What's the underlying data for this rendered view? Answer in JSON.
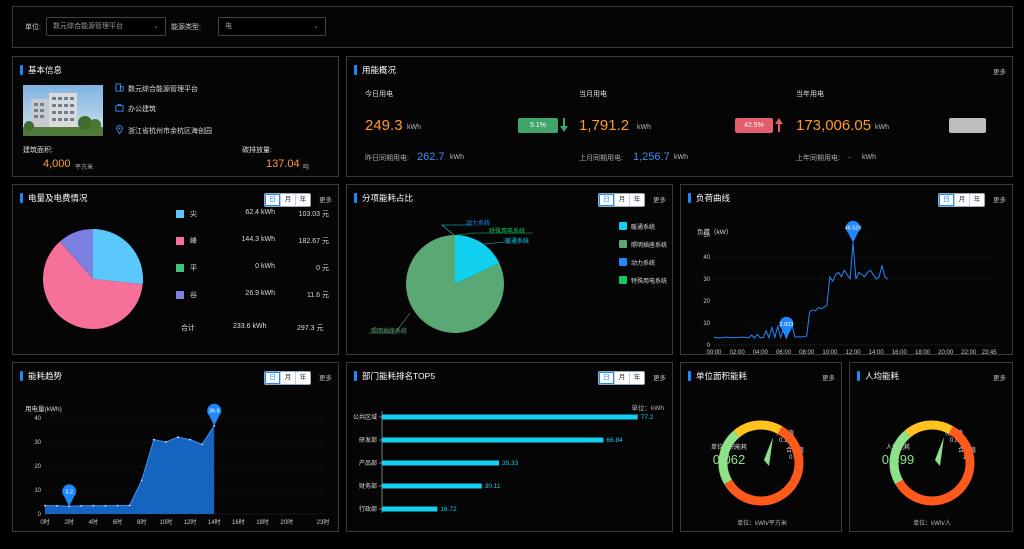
{
  "filter": {
    "unit_label": "单位:",
    "unit_value": "数元综合能源管理平台",
    "energy_type_label": "能源类型:",
    "energy_type_value": "电"
  },
  "basic_info": {
    "title": "基本信息",
    "platform_name": "数元综合能源管理平台",
    "building_type": "办公建筑",
    "address": "浙江省杭州市余杭区海创园",
    "area_label": "建筑面积:",
    "area_value": "4,000",
    "area_unit": "平方米",
    "carbon_label": "碳排放量:",
    "carbon_value": "137.04",
    "carbon_unit": "吨"
  },
  "overview": {
    "title": "用能概况",
    "more": "更多",
    "today_label": "今日用电",
    "today_value": "249.3",
    "today_unit": "kWh",
    "today_badge": "5.1%",
    "yesterday_label": "昨日同期用电:",
    "yesterday_value": "262.7",
    "yesterday_unit": "kWh",
    "month_label": "当月用电",
    "month_value": "1,791.2",
    "month_unit": "kWh",
    "month_badge": "42.5%",
    "last_month_label": "上月同期用电:",
    "last_month_value": "1,256.7",
    "last_month_unit": "kWh",
    "year_label": "当年用电",
    "year_value": "173,006.05",
    "year_unit": "kWh",
    "year_badge": "-",
    "last_year_label": "上年同期用电:",
    "last_year_value": "-",
    "last_year_unit": "kWh",
    "colors": {
      "up_green": "#3fa66b",
      "up_red": "#e35d6a",
      "gray": "#bdbdbd",
      "orange": "#ff9a2e",
      "blue": "#3e8df5"
    }
  },
  "tabs": {
    "day": "日",
    "month": "月",
    "year": "年",
    "more": "更多"
  },
  "electricity_fee": {
    "title": "电量及电费情况",
    "rows": [
      {
        "name": "尖",
        "energy": "62.4 kWh",
        "fee": "103.03 元",
        "color": "#5bc8fb"
      },
      {
        "name": "峰",
        "energy": "144.3 kWh",
        "fee": "182.67 元",
        "color": "#f7709a"
      },
      {
        "name": "平",
        "energy": "0 kWh",
        "fee": "0 元",
        "color": "#45c27a"
      },
      {
        "name": "谷",
        "energy": "26.9 kWh",
        "fee": "11.6 元",
        "color": "#7a7fe0"
      }
    ],
    "total_label": "合计",
    "total_energy": "233.6 kWh",
    "total_fee": "297.3 元"
  },
  "subitem": {
    "title": "分项能耗占比",
    "legend": [
      {
        "name": "暖通系统",
        "color": "#12d0f0"
      },
      {
        "name": "照明插座系统",
        "color": "#5aa873"
      },
      {
        "name": "动力系统",
        "color": "#1e88ff"
      },
      {
        "name": "特殊用电系统",
        "color": "#17c963"
      }
    ],
    "labels": {
      "power": "动力系统",
      "special": "特殊用电系统",
      "hvac": "暖通系统",
      "lighting": "照明插座系统"
    }
  },
  "load_curve": {
    "title": "负荷曲线",
    "y_title": "负荷（kW）",
    "peak_label": "46.529",
    "low_label": "2.833"
  },
  "trend": {
    "title": "能耗趋势",
    "y_title": "用电量(kWh)",
    "peak_label": "36.8",
    "low_label": "3.2"
  },
  "dept": {
    "title": "部门能耗排名TOP5",
    "unit_label": "单位：kWh"
  },
  "unit_area": {
    "title": "单位面积能耗",
    "center_label": "单位面积能耗",
    "center_value": "0.062",
    "advanced_label": "先进值",
    "advanced_value": "0.16",
    "reasonable_label": "合理值",
    "reasonable_value": "0.22",
    "unit": "单位：kWh/平方米",
    "more": "更多"
  },
  "per_capita": {
    "title": "人均能耗",
    "center_label": "人均能耗",
    "center_value": "0.499",
    "advanced_label": "先进值",
    "advanced_value": "0.8",
    "reasonable_label": "合理值",
    "reasonable_value": "1.2",
    "unit": "单位：kWh/人",
    "more": "更多"
  },
  "chart_data": [
    {
      "type": "pie",
      "title": "电量及电费情况",
      "categories": [
        "尖",
        "峰",
        "平",
        "谷"
      ],
      "values": [
        62.4,
        144.3,
        0,
        26.9
      ],
      "colors": [
        "#5bc8fb",
        "#f7709a",
        "#45c27a",
        "#7a7fe0"
      ]
    },
    {
      "type": "pie",
      "title": "分项能耗占比",
      "categories": [
        "暖通系统",
        "照明插座系统",
        "动力系统",
        "特殊用电系统"
      ],
      "values": [
        18,
        82,
        0,
        0
      ],
      "colors": [
        "#12d0f0",
        "#5aa873",
        "#1e88ff",
        "#17c963"
      ]
    },
    {
      "type": "line",
      "title": "负荷曲线",
      "ylabel": "负荷（kW）",
      "ylim": [
        0,
        50
      ],
      "yticks": [
        0,
        10,
        20,
        30,
        40,
        50
      ],
      "xlim": [
        0,
        24
      ],
      "xtick_labels": [
        "00:00",
        "02:00",
        "04:00",
        "06:00",
        "08:00",
        "10:00",
        "12:00",
        "14:00",
        "16:00",
        "18:00",
        "20:00",
        "22:00",
        "23:45"
      ],
      "xtick_values": [
        0,
        2,
        4,
        6,
        8,
        10,
        12,
        14,
        16,
        18,
        20,
        22,
        23.75
      ],
      "x": [
        0,
        0.5,
        1,
        1.5,
        2,
        2.5,
        3,
        3.25,
        3.5,
        3.75,
        4,
        4.25,
        4.5,
        4.75,
        5,
        5.25,
        5.5,
        5.75,
        6,
        6.25,
        6.5,
        6.75,
        7,
        7.25,
        7.5,
        7.75,
        8,
        8.25,
        8.5,
        8.75,
        9,
        9.25,
        9.5,
        9.75,
        10,
        10.25,
        10.5,
        10.75,
        11,
        11.25,
        11.5,
        11.75,
        12,
        12.25,
        12.5,
        12.75,
        13,
        13.25,
        13.5,
        13.75,
        14,
        14.25,
        14.5,
        14.75,
        15
      ],
      "y": [
        3.5,
        3.2,
        3.6,
        3.3,
        3.4,
        3.6,
        3.3,
        4.5,
        3.2,
        4.8,
        3.3,
        3.4,
        6.5,
        3.3,
        8,
        3.4,
        8.5,
        3.5,
        7.5,
        2.833,
        9,
        8.5,
        3.5,
        3.8,
        3.6,
        3.9,
        4,
        15,
        16,
        15.5,
        17,
        16.5,
        17.2,
        18,
        31,
        29,
        32,
        33,
        31,
        34,
        32,
        30,
        46.529,
        30,
        33,
        32,
        31,
        33,
        34,
        32,
        30,
        31,
        36,
        31,
        30
      ],
      "annotations": [
        {
          "x": 12,
          "y": 46.529,
          "label": "46.529"
        },
        {
          "x": 6.25,
          "y": 2.833,
          "label": "2.833"
        }
      ]
    },
    {
      "type": "area",
      "title": "能耗趋势",
      "ylabel": "用电量(kWh)",
      "ylim": [
        0,
        40
      ],
      "yticks": [
        0,
        10,
        20,
        30,
        40
      ],
      "xlim": [
        0,
        23
      ],
      "xtick_labels": [
        "0时",
        "2时",
        "4时",
        "6时",
        "8时",
        "10时",
        "12时",
        "14时",
        "16时",
        "18时",
        "20时",
        "23时"
      ],
      "xtick_values": [
        0,
        2,
        4,
        6,
        8,
        10,
        12,
        14,
        16,
        18,
        20,
        23
      ],
      "x": [
        0,
        1,
        2,
        3,
        4,
        5,
        6,
        7,
        8,
        9,
        10,
        11,
        12,
        13,
        14
      ],
      "y": [
        3.5,
        3.4,
        3.2,
        3.4,
        3.5,
        3.4,
        3.5,
        3.6,
        14,
        31,
        30,
        32,
        31,
        29,
        36.8
      ],
      "annotations": [
        {
          "x": 2,
          "y": 3.2,
          "label": "3.2"
        },
        {
          "x": 14,
          "y": 36.8,
          "label": "36.8"
        }
      ]
    },
    {
      "type": "bar",
      "title": "部门能耗排名TOP5",
      "orientation": "horizontal",
      "categories": [
        "公共区域",
        "研发部",
        "产品部",
        "财务部",
        "行政部"
      ],
      "values": [
        77.2,
        66.84,
        35.33,
        30.11,
        16.72
      ],
      "color": "#12d0f0"
    }
  ]
}
